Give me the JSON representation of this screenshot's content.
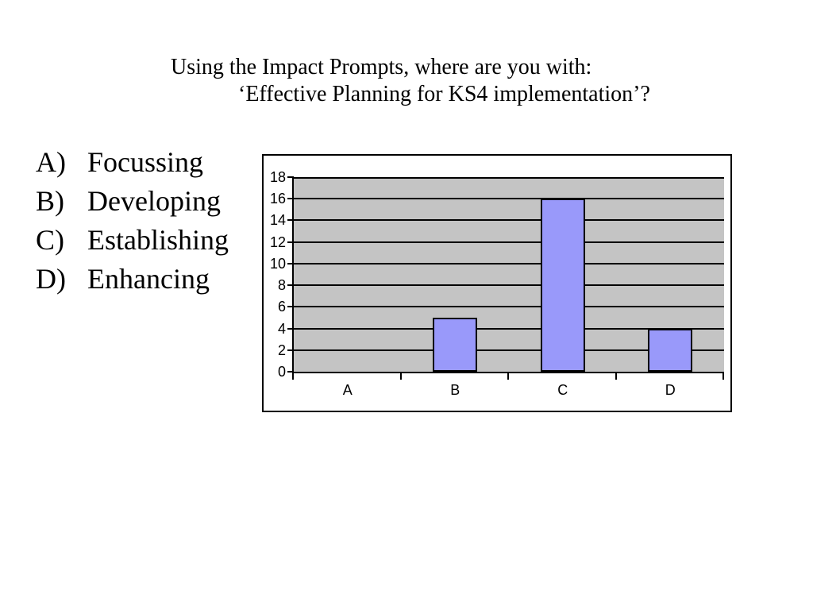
{
  "slide": {
    "title": {
      "line1": "Using the Impact Prompts, where are you with:",
      "line2": "‘Effective Planning for KS4 implementation’?"
    },
    "options": {
      "items": [
        {
          "letter": "A)",
          "label": "Focussing"
        },
        {
          "letter": "B)",
          "label": "Developing"
        },
        {
          "letter": "C)",
          "label": "Establishing"
        },
        {
          "letter": "D)",
          "label": "Enhancing"
        }
      ]
    }
  },
  "chart_data": {
    "type": "bar",
    "categories": [
      "A",
      "B",
      "C",
      "D"
    ],
    "values": [
      0,
      5,
      16,
      4
    ],
    "title": "",
    "xlabel": "",
    "ylabel": "",
    "ylim": [
      0,
      18
    ],
    "yticks": [
      0,
      2,
      4,
      6,
      8,
      10,
      12,
      14,
      16,
      18
    ],
    "grid": true,
    "legend": false,
    "bar_color": "#9999FA",
    "bar_border_color": "#000000",
    "plot_bg_color": "#C4C4C4",
    "axis_color": "#000000",
    "chart_bg_color": "#FFFFFF"
  }
}
